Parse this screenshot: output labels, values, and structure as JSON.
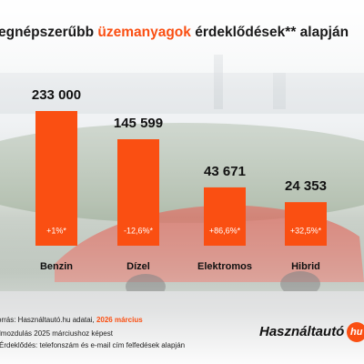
{
  "chart_data": {
    "type": "bar",
    "title_parts": [
      "egnépszerűbb ",
      "üzemanyagok",
      " érdeklődések** alapján"
    ],
    "categories": [
      "Benzin",
      "Dízel",
      "Elektromos",
      "Hibrid"
    ],
    "values": [
      233000,
      145599,
      43671,
      24353
    ],
    "value_labels": [
      "233 000",
      "145 599",
      "43 671",
      "24 353"
    ],
    "change_labels": [
      "+1%*",
      "-12,6%*",
      "+86,6%*",
      "+32,5%*"
    ],
    "color": "#fa4f12",
    "source_parts": [
      "orrás: Használtautó.hu adatai, ",
      "2026 március"
    ],
    "notes": [
      "lmozdulás 2025 márciushoz képest",
      "Érdeklődés: telefonszám és e-mail cím felfedések alapján"
    ],
    "logo": [
      "Használtautó",
      "hu"
    ]
  }
}
